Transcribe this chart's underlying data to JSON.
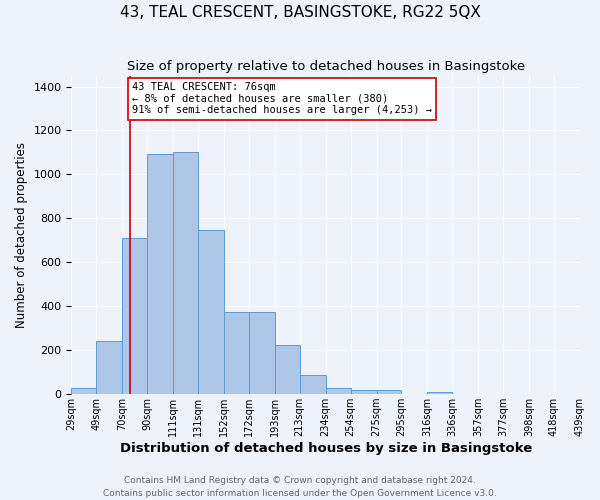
{
  "title": "43, TEAL CRESCENT, BASINGSTOKE, RG22 5QX",
  "subtitle": "Size of property relative to detached houses in Basingstoke",
  "xlabel": "Distribution of detached houses by size in Basingstoke",
  "ylabel": "Number of detached properties",
  "bin_labels": [
    "29sqm",
    "49sqm",
    "70sqm",
    "90sqm",
    "111sqm",
    "131sqm",
    "152sqm",
    "172sqm",
    "193sqm",
    "213sqm",
    "234sqm",
    "254sqm",
    "275sqm",
    "295sqm",
    "316sqm",
    "336sqm",
    "357sqm",
    "377sqm",
    "398sqm",
    "418sqm",
    "439sqm"
  ],
  "bin_edges": [
    29,
    49,
    70,
    90,
    111,
    131,
    152,
    172,
    193,
    213,
    234,
    254,
    275,
    295,
    316,
    336,
    357,
    377,
    398,
    418,
    439
  ],
  "bar_heights": [
    30,
    240,
    710,
    1095,
    1100,
    745,
    375,
    375,
    225,
    85,
    30,
    20,
    20,
    0,
    10,
    0,
    0,
    0,
    0,
    0
  ],
  "bar_color": "#aec6e8",
  "bar_edgecolor": "#5b9bd5",
  "property_size": 76,
  "redline_color": "#cc0000",
  "ylim": [
    0,
    1450
  ],
  "yticks": [
    0,
    200,
    400,
    600,
    800,
    1000,
    1200,
    1400
  ],
  "annotation_title": "43 TEAL CRESCENT: 76sqm",
  "annotation_line1": "← 8% of detached houses are smaller (380)",
  "annotation_line2": "91% of semi-detached houses are larger (4,253) →",
  "annotation_box_color": "#ffffff",
  "annotation_box_edgecolor": "#cc0000",
  "footer_line1": "Contains HM Land Registry data © Crown copyright and database right 2024.",
  "footer_line2": "Contains public sector information licensed under the Open Government Licence v3.0.",
  "background_color": "#eef2fa",
  "title_fontsize": 11,
  "subtitle_fontsize": 9.5,
  "xlabel_fontsize": 9.5,
  "ylabel_fontsize": 8.5,
  "footer_fontsize": 6.5,
  "tick_fontsize": 7,
  "ytick_fontsize": 8
}
